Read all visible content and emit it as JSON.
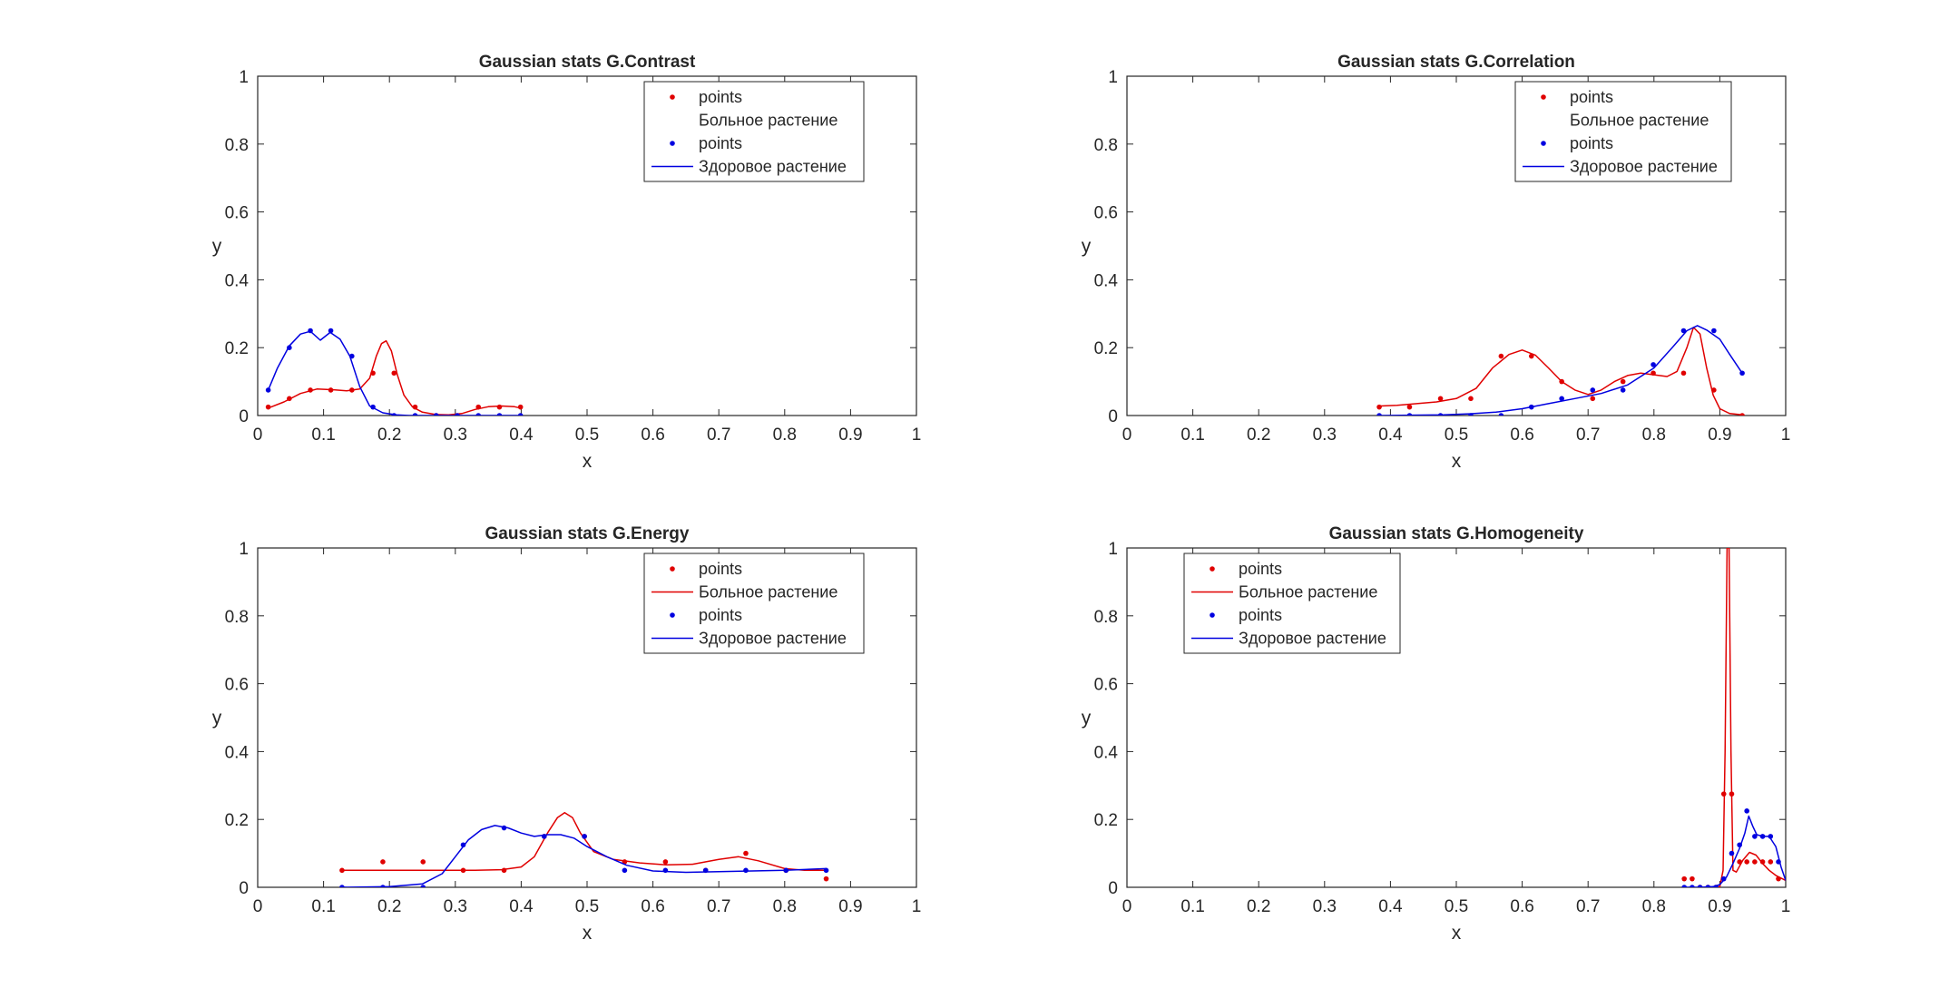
{
  "chart_data": [
    {
      "type": "line",
      "title": "Gaussian stats G.Contrast",
      "xlabel": "x",
      "ylabel": "y",
      "xlim": [
        0,
        1
      ],
      "ylim": [
        0,
        1
      ],
      "xticks": [
        "0",
        "0.1",
        "0.2",
        "0.3",
        "0.4",
        "0.5",
        "0.6",
        "0.7",
        "0.8",
        "0.9",
        "1"
      ],
      "yticks": [
        "0",
        "0.2",
        "0.4",
        "0.6",
        "0.8",
        "1"
      ],
      "grid": false,
      "legend_position": "top-right",
      "legend": [
        {
          "label": "points",
          "kind": "marker",
          "color": "#e00000"
        },
        {
          "label": "Больное растение",
          "kind": "line-hidden",
          "color": "#e00000"
        },
        {
          "label": "points",
          "kind": "marker",
          "color": "#0000e0"
        },
        {
          "label": "Здоровое растение",
          "kind": "line",
          "color": "#0000e0"
        }
      ],
      "series": [
        {
          "role": "points",
          "color": "#e00000",
          "x": [
            0.016,
            0.048,
            0.08,
            0.111,
            0.143,
            0.175,
            0.207,
            0.239,
            0.271,
            0.303,
            0.335,
            0.367,
            0.399
          ],
          "y": [
            0.025,
            0.05,
            0.075,
            0.075,
            0.075,
            0.125,
            0.125,
            0.025,
            0.0,
            0.0,
            0.025,
            0.025,
            0.025
          ]
        },
        {
          "role": "curve",
          "color": "#e00000",
          "x": [
            0.016,
            0.04,
            0.065,
            0.09,
            0.115,
            0.135,
            0.155,
            0.17,
            0.18,
            0.188,
            0.195,
            0.203,
            0.212,
            0.222,
            0.235,
            0.25,
            0.27,
            0.29,
            0.31,
            0.33,
            0.35,
            0.37,
            0.39,
            0.399
          ],
          "y": [
            0.022,
            0.04,
            0.065,
            0.078,
            0.076,
            0.073,
            0.078,
            0.11,
            0.175,
            0.212,
            0.22,
            0.19,
            0.12,
            0.06,
            0.025,
            0.01,
            0.003,
            0.002,
            0.006,
            0.018,
            0.026,
            0.028,
            0.026,
            0.022
          ]
        },
        {
          "role": "points",
          "color": "#0000e0",
          "x": [
            0.016,
            0.048,
            0.08,
            0.111,
            0.143,
            0.175,
            0.207,
            0.239,
            0.271,
            0.303,
            0.335,
            0.367,
            0.399
          ],
          "y": [
            0.075,
            0.2,
            0.25,
            0.25,
            0.175,
            0.025,
            0.0,
            0.0,
            0.0,
            0.0,
            0.0,
            0.0,
            0.0
          ]
        },
        {
          "role": "curve",
          "color": "#0000e0",
          "x": [
            0.016,
            0.03,
            0.048,
            0.065,
            0.08,
            0.095,
            0.11,
            0.125,
            0.14,
            0.155,
            0.17,
            0.19,
            0.21,
            0.23,
            0.26,
            0.3,
            0.35,
            0.399
          ],
          "y": [
            0.075,
            0.14,
            0.205,
            0.24,
            0.248,
            0.222,
            0.245,
            0.225,
            0.175,
            0.085,
            0.028,
            0.008,
            0.002,
            0.0,
            0.0,
            0.0,
            0.0,
            0.0
          ]
        }
      ]
    },
    {
      "type": "line",
      "title": "Gaussian stats G.Correlation",
      "xlabel": "x",
      "ylabel": "y",
      "xlim": [
        0,
        1
      ],
      "ylim": [
        0,
        1
      ],
      "xticks": [
        "0",
        "0.1",
        "0.2",
        "0.3",
        "0.4",
        "0.5",
        "0.6",
        "0.7",
        "0.8",
        "0.9",
        "1"
      ],
      "yticks": [
        "0",
        "0.2",
        "0.4",
        "0.6",
        "0.8",
        "1"
      ],
      "grid": false,
      "legend_position": "top-right",
      "legend": [
        {
          "label": "points",
          "kind": "marker",
          "color": "#e00000"
        },
        {
          "label": "Больное растение",
          "kind": "line-hidden",
          "color": "#e00000"
        },
        {
          "label": "points",
          "kind": "marker",
          "color": "#0000e0"
        },
        {
          "label": "Здоровое растение",
          "kind": "line",
          "color": "#0000e0"
        }
      ],
      "series": [
        {
          "role": "points",
          "color": "#e00000",
          "x": [
            0.383,
            0.429,
            0.476,
            0.522,
            0.568,
            0.614,
            0.66,
            0.707,
            0.753,
            0.799,
            0.845,
            0.891,
            0.934
          ],
          "y": [
            0.025,
            0.025,
            0.05,
            0.05,
            0.175,
            0.175,
            0.1,
            0.05,
            0.1,
            0.125,
            0.125,
            0.075,
            0.0
          ]
        },
        {
          "role": "curve",
          "color": "#e00000",
          "x": [
            0.383,
            0.41,
            0.44,
            0.47,
            0.5,
            0.53,
            0.555,
            0.58,
            0.6,
            0.62,
            0.64,
            0.66,
            0.68,
            0.7,
            0.72,
            0.74,
            0.76,
            0.78,
            0.8,
            0.82,
            0.835,
            0.85,
            0.86,
            0.87,
            0.88,
            0.89,
            0.9,
            0.915,
            0.934
          ],
          "y": [
            0.028,
            0.03,
            0.035,
            0.04,
            0.05,
            0.08,
            0.14,
            0.18,
            0.193,
            0.178,
            0.14,
            0.1,
            0.075,
            0.062,
            0.075,
            0.1,
            0.118,
            0.125,
            0.12,
            0.115,
            0.13,
            0.2,
            0.26,
            0.24,
            0.14,
            0.06,
            0.02,
            0.006,
            0.002
          ]
        },
        {
          "role": "points",
          "color": "#0000e0",
          "x": [
            0.383,
            0.429,
            0.476,
            0.522,
            0.568,
            0.614,
            0.66,
            0.707,
            0.753,
            0.799,
            0.845,
            0.891,
            0.934
          ],
          "y": [
            0.0,
            0.0,
            0.0,
            0.0,
            0.0,
            0.025,
            0.05,
            0.075,
            0.075,
            0.15,
            0.25,
            0.25,
            0.125
          ]
        },
        {
          "role": "curve",
          "color": "#0000e0",
          "x": [
            0.383,
            0.43,
            0.48,
            0.52,
            0.56,
            0.6,
            0.64,
            0.68,
            0.72,
            0.76,
            0.8,
            0.83,
            0.85,
            0.866,
            0.88,
            0.9,
            0.915,
            0.934
          ],
          "y": [
            0.0,
            0.001,
            0.002,
            0.005,
            0.01,
            0.02,
            0.035,
            0.05,
            0.065,
            0.09,
            0.14,
            0.205,
            0.25,
            0.265,
            0.252,
            0.225,
            0.18,
            0.125
          ]
        }
      ]
    },
    {
      "type": "line",
      "title": "Gaussian stats G.Energy",
      "xlabel": "x",
      "ylabel": "y",
      "xlim": [
        0,
        1
      ],
      "ylim": [
        0,
        1
      ],
      "xticks": [
        "0",
        "0.1",
        "0.2",
        "0.3",
        "0.4",
        "0.5",
        "0.6",
        "0.7",
        "0.8",
        "0.9",
        "1"
      ],
      "yticks": [
        "0",
        "0.2",
        "0.4",
        "0.6",
        "0.8",
        "1"
      ],
      "grid": false,
      "legend_position": "top-right",
      "legend": [
        {
          "label": "points",
          "kind": "marker",
          "color": "#e00000"
        },
        {
          "label": "Больное растение",
          "kind": "line",
          "color": "#e00000"
        },
        {
          "label": "points",
          "kind": "marker",
          "color": "#0000e0"
        },
        {
          "label": "Здоровое растение",
          "kind": "line",
          "color": "#0000e0"
        }
      ],
      "series": [
        {
          "role": "points",
          "color": "#e00000",
          "x": [
            0.128,
            0.19,
            0.251,
            0.312,
            0.374,
            0.435,
            0.496,
            0.557,
            0.619,
            0.68,
            0.741,
            0.802,
            0.863
          ],
          "y": [
            0.05,
            0.075,
            0.075,
            0.05,
            0.05,
            0.15,
            0.15,
            0.075,
            0.075,
            0.05,
            0.1,
            0.05,
            0.025
          ]
        },
        {
          "role": "curve",
          "color": "#e00000",
          "x": [
            0.128,
            0.2,
            0.28,
            0.33,
            0.37,
            0.4,
            0.42,
            0.44,
            0.455,
            0.466,
            0.478,
            0.49,
            0.51,
            0.54,
            0.58,
            0.62,
            0.66,
            0.7,
            0.73,
            0.76,
            0.8,
            0.83,
            0.863
          ],
          "y": [
            0.05,
            0.05,
            0.05,
            0.05,
            0.052,
            0.06,
            0.09,
            0.16,
            0.205,
            0.22,
            0.205,
            0.16,
            0.105,
            0.082,
            0.072,
            0.066,
            0.068,
            0.082,
            0.09,
            0.078,
            0.055,
            0.05,
            0.05
          ]
        },
        {
          "role": "points",
          "color": "#0000e0",
          "x": [
            0.128,
            0.19,
            0.251,
            0.312,
            0.374,
            0.435,
            0.496,
            0.557,
            0.619,
            0.68,
            0.741,
            0.802,
            0.863
          ],
          "y": [
            0.0,
            0.0,
            0.0,
            0.125,
            0.175,
            0.15,
            0.15,
            0.05,
            0.05,
            0.05,
            0.05,
            0.05,
            0.05
          ]
        },
        {
          "role": "curve",
          "color": "#0000e0",
          "x": [
            0.128,
            0.2,
            0.25,
            0.28,
            0.3,
            0.32,
            0.34,
            0.36,
            0.38,
            0.4,
            0.42,
            0.44,
            0.46,
            0.48,
            0.5,
            0.53,
            0.56,
            0.6,
            0.65,
            0.7,
            0.75,
            0.8,
            0.863
          ],
          "y": [
            0.0,
            0.002,
            0.01,
            0.04,
            0.09,
            0.14,
            0.17,
            0.182,
            0.175,
            0.16,
            0.15,
            0.155,
            0.155,
            0.145,
            0.12,
            0.09,
            0.065,
            0.048,
            0.044,
            0.046,
            0.048,
            0.05,
            0.055
          ]
        }
      ]
    },
    {
      "type": "line",
      "title": "Gaussian stats G.Homogeneity",
      "xlabel": "x",
      "ylabel": "y",
      "xlim": [
        0,
        1
      ],
      "ylim": [
        0,
        1
      ],
      "xticks": [
        "0",
        "0.1",
        "0.2",
        "0.3",
        "0.4",
        "0.5",
        "0.6",
        "0.7",
        "0.8",
        "0.9",
        "1"
      ],
      "yticks": [
        "0",
        "0.2",
        "0.4",
        "0.6",
        "0.8",
        "1"
      ],
      "grid": false,
      "legend_position": "top-left",
      "legend": [
        {
          "label": "points",
          "kind": "marker",
          "color": "#e00000"
        },
        {
          "label": "Больное растение",
          "kind": "line",
          "color": "#e00000"
        },
        {
          "label": "points",
          "kind": "marker",
          "color": "#0000e0"
        },
        {
          "label": "Здоровое растение",
          "kind": "line",
          "color": "#0000e0"
        }
      ],
      "series": [
        {
          "role": "points",
          "color": "#e00000",
          "x": [
            0.846,
            0.858,
            0.87,
            0.882,
            0.894,
            0.906,
            0.918,
            0.93,
            0.941,
            0.953,
            0.965,
            0.977,
            0.989
          ],
          "y": [
            0.025,
            0.025,
            0.0,
            0.0,
            0.0,
            0.275,
            0.275,
            0.075,
            0.075,
            0.075,
            0.075,
            0.075,
            0.025
          ]
        },
        {
          "role": "curve",
          "color": "#e00000",
          "x": [
            0.89,
            0.9,
            0.905,
            0.908,
            0.911,
            0.914,
            0.917,
            0.92,
            0.925,
            0.935,
            0.945,
            0.955,
            0.965,
            0.975,
            0.985,
            1.0
          ],
          "y": [
            0.0,
            0.002,
            0.05,
            0.4,
            1.0,
            1.0,
            0.4,
            0.05,
            0.045,
            0.08,
            0.103,
            0.095,
            0.07,
            0.05,
            0.035,
            0.02
          ]
        },
        {
          "role": "points",
          "color": "#0000e0",
          "x": [
            0.846,
            0.858,
            0.87,
            0.882,
            0.894,
            0.906,
            0.918,
            0.93,
            0.941,
            0.953,
            0.965,
            0.977,
            0.989
          ],
          "y": [
            0.0,
            0.0,
            0.0,
            0.0,
            0.0,
            0.025,
            0.1,
            0.125,
            0.225,
            0.15,
            0.15,
            0.15,
            0.075
          ]
        },
        {
          "role": "curve",
          "color": "#0000e0",
          "x": [
            0.846,
            0.87,
            0.89,
            0.9,
            0.91,
            0.92,
            0.93,
            0.938,
            0.944,
            0.95,
            0.956,
            0.965,
            0.975,
            0.985,
            0.993,
            1.0
          ],
          "y": [
            0.0,
            0.0,
            0.002,
            0.008,
            0.03,
            0.07,
            0.115,
            0.16,
            0.21,
            0.18,
            0.155,
            0.15,
            0.15,
            0.12,
            0.06,
            0.02
          ]
        }
      ]
    }
  ]
}
